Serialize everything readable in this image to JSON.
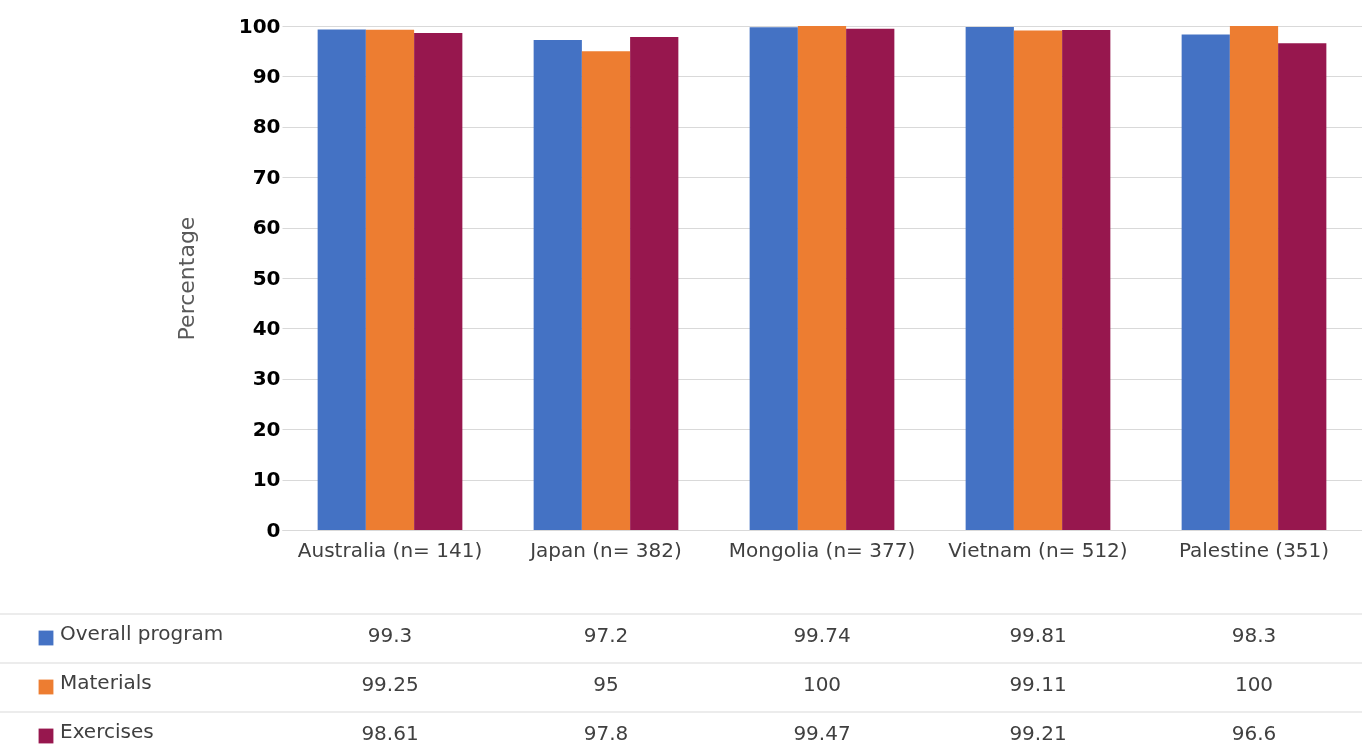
{
  "chart_data": {
    "type": "bar",
    "ylabel": "Percentage",
    "categories": [
      "Australia (n= 141)",
      "Japan (n= 382)",
      "Mongolia (n= 377)",
      "Vietnam (n= 512)",
      "Palestine (351)"
    ],
    "series": [
      {
        "name": "Overall program",
        "color": "#4472c4",
        "values": [
          99.3,
          97.2,
          99.74,
          99.81,
          98.3
        ]
      },
      {
        "name": "Materials",
        "color": "#ed7d31",
        "values": [
          99.25,
          95,
          100,
          99.11,
          100
        ]
      },
      {
        "name": "Exercises",
        "color": "#97174e",
        "values": [
          98.61,
          97.8,
          99.47,
          99.21,
          96.6
        ]
      }
    ],
    "ylim": [
      0,
      100
    ],
    "yticks": [
      0,
      10,
      20,
      30,
      40,
      50,
      60,
      70,
      80,
      90,
      100
    ],
    "grid": "y",
    "legend": "bottom",
    "data_labels": true
  }
}
